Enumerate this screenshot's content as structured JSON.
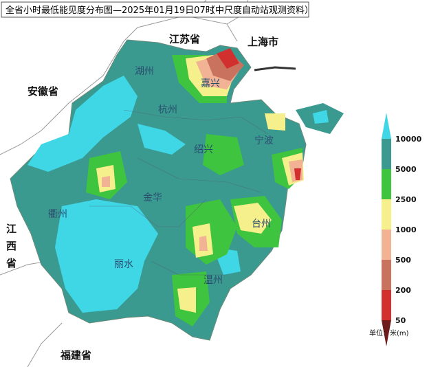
{
  "title": "全省小时最低能见度分布图—2025年01月19日07时",
  "source": "（中尺度自动站观测资料）",
  "places": {
    "jiangsu": "江苏省",
    "shanghai": "上海市",
    "anhui": "安徽省",
    "jiangxi": "江西省",
    "fujian": "福建省",
    "huzhou": "湖州",
    "jiaxing": "嘉兴",
    "hangzhou": "杭州",
    "shaoxing": "绍兴",
    "ningbo": "宁波",
    "quzhou": "衢州",
    "jinhua": "金华",
    "taizhou": "台州",
    "lishui": "丽水",
    "wenzhou": "温州"
  },
  "legend": {
    "levels": [
      10000,
      5000,
      2500,
      1000,
      500,
      200,
      50
    ],
    "colors": [
      "#3fd6e6",
      "#3a9a90",
      "#3ec43e",
      "#f6f08c",
      "#f2b294",
      "#c9735f",
      "#d22f2f",
      "#6e1c1c"
    ],
    "unit": "单位：米(m)"
  }
}
